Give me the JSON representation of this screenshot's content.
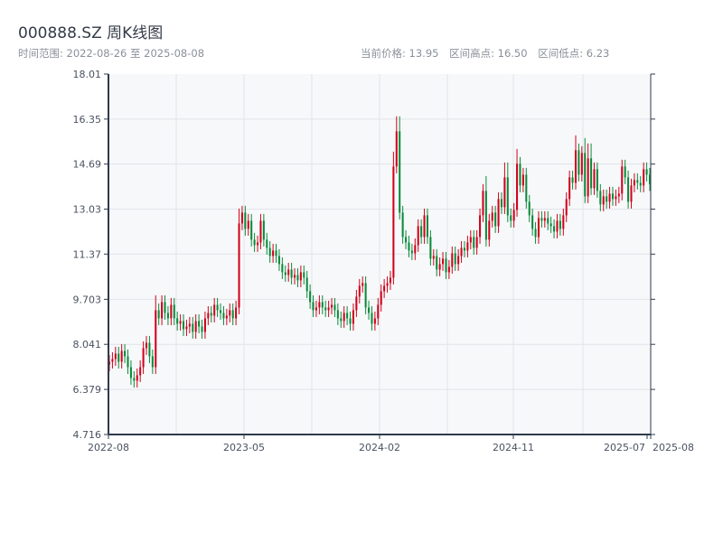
{
  "header": {
    "title": "000888.SZ 周K线图",
    "range_label": "时间范围: 2022-08-26 至 2025-08-08",
    "current_price": "当前价格: 13.95",
    "period_high": "区间高点: 16.50",
    "period_low": "区间低点: 6.23"
  },
  "colors": {
    "up": "#d0021b",
    "down": "#0a8a3a",
    "plot_bg": "#f7f8fa",
    "axis": "#2e3a4d",
    "grid": "#e1e4e8"
  },
  "chart_data": {
    "type": "candlestick",
    "title": "000888.SZ 周K线图",
    "frequency": "weekly",
    "start": "2022-08-26",
    "end": "2025-08-08",
    "ylim": [
      4.716,
      18.01
    ],
    "y_ticks": [
      "4.716",
      "6.379",
      "8.041",
      "9.703",
      "11.37",
      "13.03",
      "14.69",
      "16.35",
      "18.01"
    ],
    "x_ticks": [
      "2022-08",
      "2023-05",
      "2024-02",
      "2024-11",
      "2025-07",
      "2025-08"
    ],
    "grid": true,
    "open": [
      7.3,
      7.4,
      7.5,
      7.7,
      7.4,
      7.8,
      7.6,
      7.2,
      6.8,
      6.7,
      6.9,
      7.2,
      7.9,
      8.1,
      7.6,
      7.2,
      9.3,
      9.0,
      9.6,
      9.2,
      9.0,
      9.5,
      9.0,
      8.8,
      8.9,
      8.6,
      8.7,
      8.8,
      8.5,
      8.9,
      8.7,
      8.5,
      9.0,
      9.2,
      9.1,
      9.5,
      9.3,
      9.2,
      9.0,
      9.1,
      9.3,
      9.0,
      9.4,
      12.5,
      12.9,
      12.3,
      12.6,
      11.9,
      11.7,
      11.8,
      12.6,
      11.9,
      11.6,
      11.3,
      11.5,
      11.3,
      11.0,
      10.7,
      10.6,
      10.8,
      10.5,
      10.6,
      10.4,
      10.7,
      10.5,
      10.0,
      9.6,
      9.3,
      9.4,
      9.6,
      9.4,
      9.3,
      9.4,
      9.5,
      9.3,
      9.0,
      8.9,
      9.2,
      9.0,
      8.8,
      9.3,
      9.8,
      10.2,
      10.3,
      9.4,
      9.2,
      8.8,
      9.0,
      9.5,
      10.0,
      10.2,
      10.3,
      10.5,
      14.6,
      15.9,
      12.9,
      12.0,
      11.8,
      11.5,
      11.4,
      11.7,
      12.4,
      12.0,
      12.8,
      12.0,
      11.2,
      11.3,
      10.8,
      11.0,
      11.2,
      10.7,
      10.9,
      11.4,
      11.0,
      11.3,
      11.6,
      11.5,
      11.8,
      12.0,
      11.6,
      12.0,
      12.8,
      13.7,
      11.9,
      12.6,
      12.9,
      12.4,
      13.4,
      13.1,
      14.2,
      12.8,
      12.6,
      13.0,
      14.7,
      13.9,
      14.3,
      13.3,
      12.8,
      12.3,
      12.0,
      12.7,
      12.6,
      12.7,
      12.5,
      12.4,
      12.2,
      12.6,
      12.3,
      12.8,
      13.4,
      14.2,
      14.0,
      15.2,
      14.3,
      15.1,
      13.5,
      14.9,
      13.8,
      14.5,
      13.7,
      13.2,
      13.5,
      13.3,
      13.6,
      13.4,
      13.5,
      13.6,
      14.6,
      14.2,
      13.3,
      13.9,
      14.1,
      14.0,
      13.9,
      14.5,
      14.3
    ],
    "close": [
      7.4,
      7.5,
      7.7,
      7.4,
      7.8,
      7.6,
      7.2,
      6.8,
      6.7,
      6.9,
      7.2,
      7.9,
      8.1,
      7.6,
      7.2,
      9.3,
      9.0,
      9.6,
      9.2,
      9.0,
      9.5,
      9.0,
      8.8,
      8.9,
      8.6,
      8.7,
      8.8,
      8.5,
      8.9,
      8.7,
      8.5,
      9.0,
      9.2,
      9.1,
      9.5,
      9.3,
      9.2,
      9.0,
      9.1,
      9.3,
      9.0,
      9.4,
      12.5,
      12.9,
      12.3,
      12.6,
      11.9,
      11.7,
      11.8,
      12.6,
      11.9,
      11.6,
      11.3,
      11.5,
      11.3,
      11.0,
      10.7,
      10.6,
      10.8,
      10.5,
      10.6,
      10.4,
      10.7,
      10.5,
      10.0,
      9.6,
      9.3,
      9.4,
      9.6,
      9.4,
      9.3,
      9.4,
      9.5,
      9.3,
      9.0,
      8.9,
      9.2,
      9.0,
      8.8,
      9.3,
      9.8,
      10.2,
      10.3,
      9.4,
      9.2,
      8.8,
      9.0,
      9.5,
      10.0,
      10.2,
      10.3,
      10.5,
      14.6,
      15.9,
      12.9,
      12.0,
      11.8,
      11.5,
      11.4,
      11.7,
      12.4,
      12.0,
      12.8,
      12.0,
      11.2,
      11.3,
      10.8,
      11.0,
      11.2,
      10.7,
      10.9,
      11.4,
      11.0,
      11.3,
      11.6,
      11.5,
      11.8,
      12.0,
      11.6,
      12.0,
      12.8,
      13.7,
      11.9,
      12.6,
      12.9,
      12.4,
      13.4,
      13.1,
      14.2,
      12.8,
      12.6,
      13.0,
      14.7,
      13.9,
      14.3,
      13.3,
      12.8,
      12.3,
      12.0,
      12.7,
      12.6,
      12.7,
      12.5,
      12.4,
      12.2,
      12.6,
      12.3,
      12.8,
      13.4,
      14.2,
      14.0,
      15.2,
      14.3,
      15.1,
      13.5,
      14.9,
      13.8,
      14.5,
      13.7,
      13.2,
      13.5,
      13.3,
      13.6,
      13.4,
      13.5,
      13.6,
      14.6,
      14.2,
      13.3,
      13.9,
      14.1,
      14.0,
      13.9,
      14.5,
      14.3,
      13.95
    ]
  }
}
